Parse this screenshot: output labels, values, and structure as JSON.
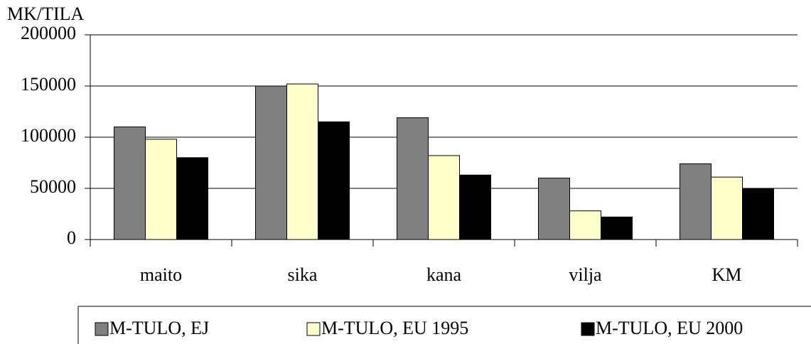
{
  "chart_data": {
    "type": "bar",
    "y_axis_label": "MK/TILA",
    "categories": [
      "maito",
      "sika",
      "kana",
      "vilja",
      "KM"
    ],
    "series": [
      {
        "name": "M-TULO, EJ",
        "color": "#808080",
        "values": [
          110000,
          150000,
          119000,
          60000,
          74000
        ]
      },
      {
        "name": "M-TULO, EU 1995",
        "color": "#ffffcc",
        "values": [
          98000,
          152000,
          82000,
          28000,
          61000
        ]
      },
      {
        "name": "M-TULO, EU 2000",
        "color": "#000000",
        "values": [
          80000,
          115000,
          63000,
          22000,
          50000
        ]
      }
    ],
    "ylim": [
      0,
      200000
    ],
    "yticks": [
      0,
      50000,
      100000,
      150000,
      200000
    ],
    "grid": true,
    "legend": "bottom"
  }
}
